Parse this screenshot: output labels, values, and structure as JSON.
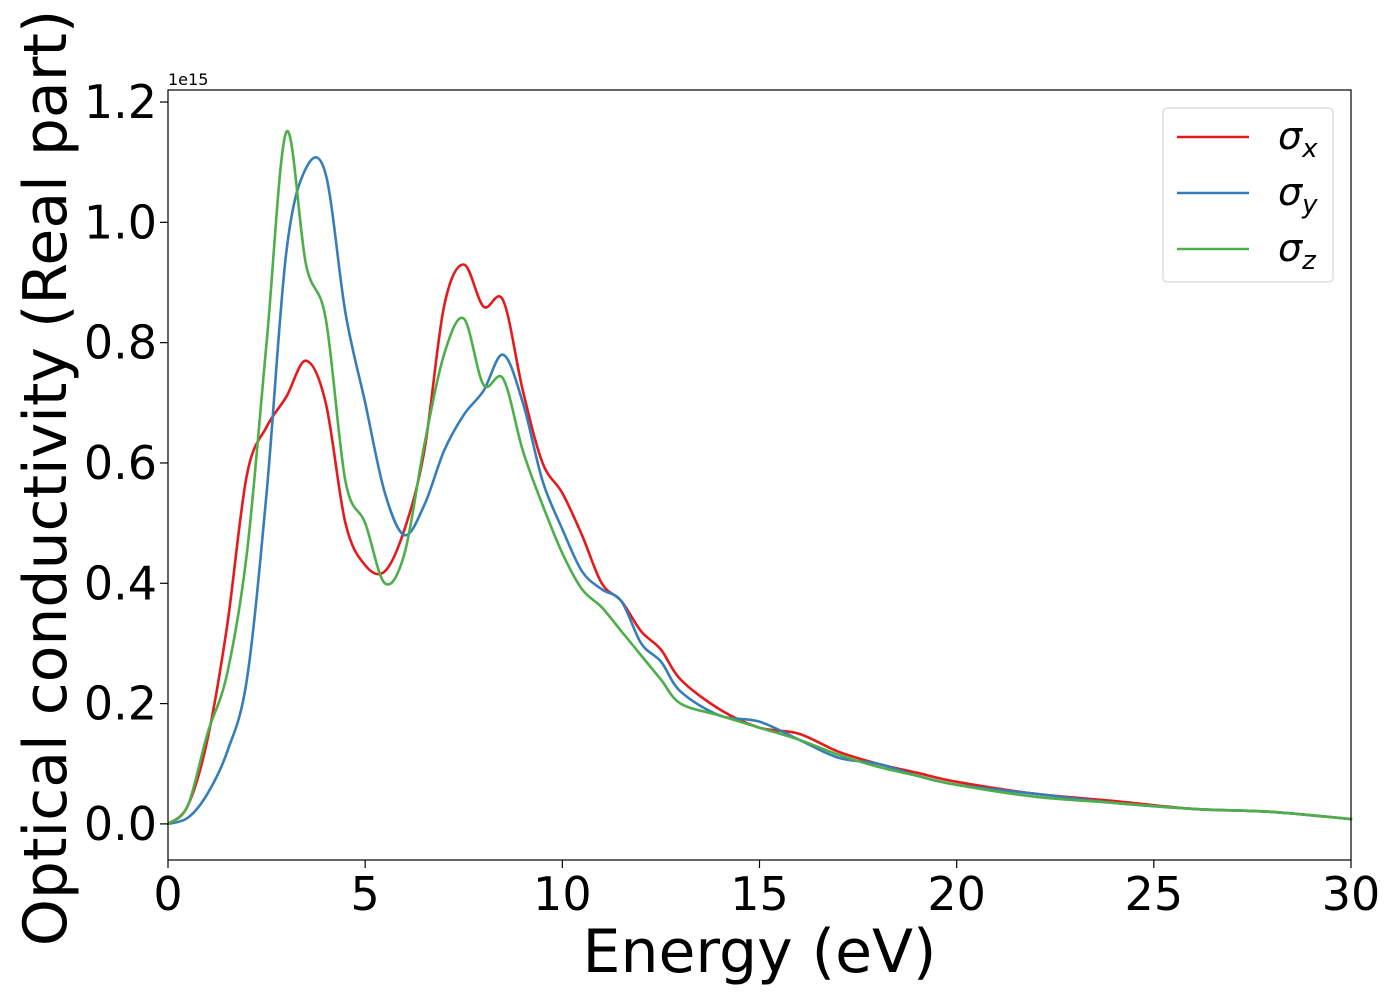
{
  "chart_data": {
    "type": "line",
    "xlabel": "Energy (eV)",
    "ylabel": "Optical conductivity (Real part)",
    "y_offset_label": "1e15",
    "xlim": [
      0,
      30
    ],
    "ylim": [
      -0.06,
      1.22
    ],
    "xticks": [
      0,
      5,
      10,
      15,
      20,
      25,
      30
    ],
    "xtick_labels": [
      "0",
      "5",
      "10",
      "15",
      "20",
      "25",
      "30"
    ],
    "yticks": [
      0.0,
      0.2,
      0.4,
      0.6,
      0.8,
      1.0,
      1.2
    ],
    "ytick_labels": [
      "0.0",
      "0.2",
      "0.4",
      "0.6",
      "0.8",
      "1.0",
      "1.2"
    ],
    "grid": false,
    "legend_position": "top-right",
    "x": [
      0,
      0.5,
      1,
      1.5,
      2,
      2.5,
      3,
      3.5,
      4,
      4.5,
      5,
      5.5,
      6,
      6.5,
      7,
      7.5,
      8,
      8.5,
      9,
      9.5,
      10,
      10.5,
      11,
      11.5,
      12,
      12.5,
      13,
      14,
      15,
      16,
      17,
      18,
      19,
      20,
      22,
      24,
      26,
      28,
      30
    ],
    "series": [
      {
        "name": "x",
        "color": "#e41a1c",
        "values": [
          0.0,
          0.03,
          0.14,
          0.33,
          0.58,
          0.66,
          0.71,
          0.77,
          0.7,
          0.5,
          0.43,
          0.42,
          0.49,
          0.62,
          0.86,
          0.93,
          0.86,
          0.87,
          0.72,
          0.6,
          0.55,
          0.48,
          0.4,
          0.37,
          0.32,
          0.29,
          0.24,
          0.19,
          0.16,
          0.15,
          0.12,
          0.1,
          0.085,
          0.07,
          0.05,
          0.038,
          0.025,
          0.02,
          0.008
        ]
      },
      {
        "name": "y",
        "color": "#377eb8",
        "values": [
          0.0,
          0.01,
          0.05,
          0.12,
          0.24,
          0.55,
          0.95,
          1.09,
          1.08,
          0.85,
          0.7,
          0.55,
          0.48,
          0.53,
          0.62,
          0.68,
          0.72,
          0.78,
          0.7,
          0.57,
          0.49,
          0.42,
          0.39,
          0.37,
          0.3,
          0.27,
          0.22,
          0.18,
          0.17,
          0.14,
          0.11,
          0.1,
          0.08,
          0.065,
          0.05,
          0.035,
          0.025,
          0.02,
          0.008
        ]
      },
      {
        "name": "z",
        "color": "#4daf4a",
        "values": [
          0.0,
          0.03,
          0.15,
          0.25,
          0.45,
          0.8,
          1.15,
          0.93,
          0.84,
          0.57,
          0.5,
          0.4,
          0.45,
          0.63,
          0.78,
          0.84,
          0.73,
          0.74,
          0.62,
          0.53,
          0.45,
          0.39,
          0.36,
          0.32,
          0.28,
          0.24,
          0.2,
          0.18,
          0.16,
          0.14,
          0.115,
          0.095,
          0.08,
          0.065,
          0.045,
          0.035,
          0.025,
          0.02,
          0.008
        ]
      }
    ]
  }
}
